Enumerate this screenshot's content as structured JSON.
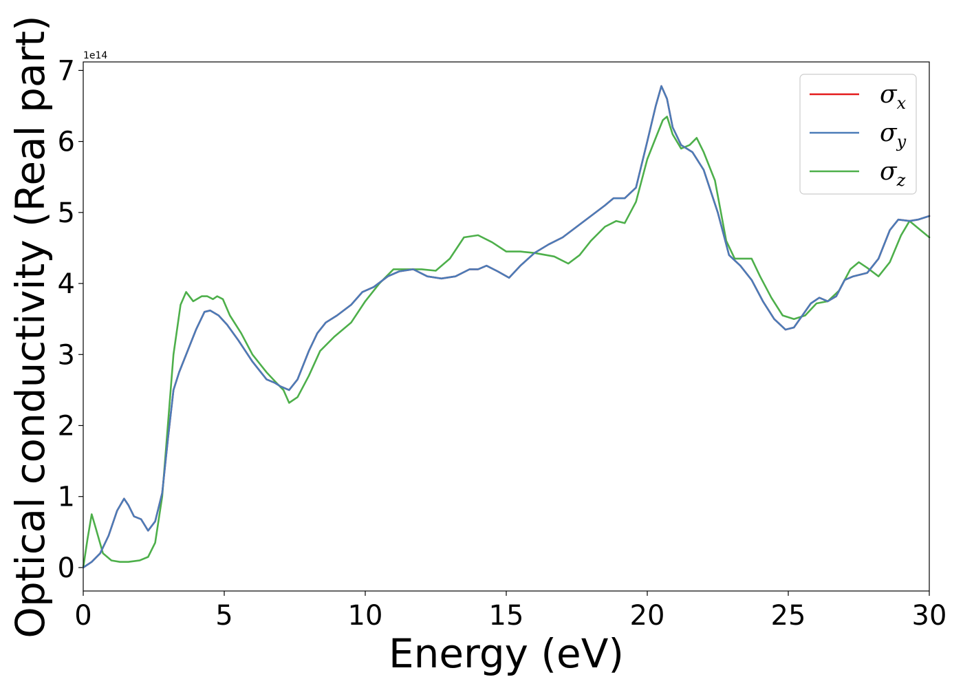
{
  "chart_data": {
    "type": "line",
    "xlabel": "Energy (eV)",
    "ylabel": "Optical conductivity (Real part)",
    "y_offset_label": "1e14",
    "xlim": [
      0,
      30
    ],
    "ylim": [
      -0.33,
      7.12
    ],
    "x_ticks": [
      0,
      5,
      10,
      15,
      20,
      25,
      30
    ],
    "y_ticks": [
      0,
      1,
      2,
      3,
      4,
      5,
      6,
      7
    ],
    "grid": false,
    "legend_position": "upper right",
    "series": [
      {
        "name": "σx",
        "name_base": "σ",
        "name_sub": "x",
        "color": "#e41a1c",
        "x": [
          0,
          0.3,
          0.6,
          0.9,
          1.2,
          1.45,
          1.6,
          1.8,
          2.05,
          2.3,
          2.55,
          2.8,
          3.0,
          3.2,
          3.4,
          3.7,
          4.0,
          4.3,
          4.5,
          4.8,
          5.1,
          5.5,
          6.0,
          6.5,
          6.8,
          7.0,
          7.3,
          7.6,
          8.0,
          8.3,
          8.6,
          9.0,
          9.5,
          9.9,
          10.3,
          10.8,
          11.2,
          11.7,
          12.2,
          12.7,
          13.2,
          13.7,
          14.0,
          14.3,
          14.7,
          15.1,
          15.5,
          16.0,
          16.5,
          17.0,
          17.5,
          18.0,
          18.5,
          18.8,
          19.2,
          19.6,
          20.0,
          20.3,
          20.5,
          20.7,
          20.9,
          21.2,
          21.6,
          22.0,
          22.5,
          22.9,
          23.3,
          23.7,
          24.1,
          24.5,
          24.9,
          25.2,
          25.5,
          25.8,
          26.1,
          26.4,
          26.7,
          27.0,
          27.3,
          27.8,
          28.2,
          28.6,
          28.9,
          29.3,
          29.6,
          30.0
        ],
        "y": [
          0.0,
          0.08,
          0.2,
          0.45,
          0.8,
          0.97,
          0.88,
          0.72,
          0.68,
          0.52,
          0.65,
          1.05,
          1.8,
          2.5,
          2.75,
          3.05,
          3.35,
          3.6,
          3.62,
          3.55,
          3.42,
          3.2,
          2.9,
          2.65,
          2.6,
          2.55,
          2.5,
          2.65,
          3.05,
          3.3,
          3.45,
          3.55,
          3.7,
          3.88,
          3.95,
          4.1,
          4.17,
          4.2,
          4.1,
          4.07,
          4.1,
          4.2,
          4.2,
          4.25,
          4.17,
          4.08,
          4.25,
          4.43,
          4.55,
          4.65,
          4.8,
          4.95,
          5.1,
          5.2,
          5.2,
          5.35,
          6.0,
          6.5,
          6.78,
          6.6,
          6.2,
          5.95,
          5.85,
          5.6,
          5.0,
          4.4,
          4.25,
          4.05,
          3.75,
          3.5,
          3.35,
          3.38,
          3.55,
          3.72,
          3.8,
          3.75,
          3.82,
          4.05,
          4.1,
          4.15,
          4.35,
          4.75,
          4.9,
          4.88,
          4.9,
          4.95
        ]
      },
      {
        "name": "σy",
        "name_base": "σ",
        "name_sub": "y",
        "color": "#4a7cb8",
        "x": [
          0,
          0.3,
          0.6,
          0.9,
          1.2,
          1.45,
          1.6,
          1.8,
          2.05,
          2.3,
          2.55,
          2.8,
          3.0,
          3.2,
          3.4,
          3.7,
          4.0,
          4.3,
          4.5,
          4.8,
          5.1,
          5.5,
          6.0,
          6.5,
          6.8,
          7.0,
          7.3,
          7.6,
          8.0,
          8.3,
          8.6,
          9.0,
          9.5,
          9.9,
          10.3,
          10.8,
          11.2,
          11.7,
          12.2,
          12.7,
          13.2,
          13.7,
          14.0,
          14.3,
          14.7,
          15.1,
          15.5,
          16.0,
          16.5,
          17.0,
          17.5,
          18.0,
          18.5,
          18.8,
          19.2,
          19.6,
          20.0,
          20.3,
          20.5,
          20.7,
          20.9,
          21.2,
          21.6,
          22.0,
          22.5,
          22.9,
          23.3,
          23.7,
          24.1,
          24.5,
          24.9,
          25.2,
          25.5,
          25.8,
          26.1,
          26.4,
          26.7,
          27.0,
          27.3,
          27.8,
          28.2,
          28.6,
          28.9,
          29.3,
          29.6,
          30.0
        ],
        "y": [
          0.0,
          0.08,
          0.2,
          0.45,
          0.8,
          0.97,
          0.88,
          0.72,
          0.68,
          0.52,
          0.65,
          1.05,
          1.8,
          2.5,
          2.75,
          3.05,
          3.35,
          3.6,
          3.62,
          3.55,
          3.42,
          3.2,
          2.9,
          2.65,
          2.6,
          2.55,
          2.5,
          2.65,
          3.05,
          3.3,
          3.45,
          3.55,
          3.7,
          3.88,
          3.95,
          4.1,
          4.17,
          4.2,
          4.1,
          4.07,
          4.1,
          4.2,
          4.2,
          4.25,
          4.17,
          4.08,
          4.25,
          4.43,
          4.55,
          4.65,
          4.8,
          4.95,
          5.1,
          5.2,
          5.2,
          5.35,
          6.0,
          6.5,
          6.78,
          6.6,
          6.2,
          5.95,
          5.85,
          5.6,
          5.0,
          4.4,
          4.25,
          4.05,
          3.75,
          3.5,
          3.35,
          3.38,
          3.55,
          3.72,
          3.8,
          3.75,
          3.82,
          4.05,
          4.1,
          4.15,
          4.35,
          4.75,
          4.9,
          4.88,
          4.9,
          4.95
        ]
      },
      {
        "name": "σz",
        "name_base": "σ",
        "name_sub": "z",
        "color": "#4daf4a",
        "x": [
          0,
          0.15,
          0.3,
          0.45,
          0.7,
          1.0,
          1.3,
          1.6,
          2.0,
          2.3,
          2.55,
          2.8,
          3.0,
          3.2,
          3.45,
          3.65,
          3.9,
          4.2,
          4.4,
          4.6,
          4.75,
          4.95,
          5.2,
          5.6,
          6.0,
          6.5,
          6.9,
          7.1,
          7.3,
          7.6,
          8.0,
          8.4,
          8.9,
          9.5,
          10.0,
          10.5,
          11.0,
          11.5,
          12.0,
          12.5,
          13.0,
          13.5,
          14.0,
          14.5,
          15.0,
          15.5,
          16.0,
          16.7,
          17.2,
          17.6,
          18.0,
          18.5,
          18.9,
          19.2,
          19.6,
          20.0,
          20.3,
          20.55,
          20.7,
          20.9,
          21.2,
          21.5,
          21.75,
          22.0,
          22.4,
          22.8,
          23.1,
          23.4,
          23.7,
          24.0,
          24.4,
          24.8,
          25.2,
          25.6,
          26.0,
          26.4,
          26.8,
          27.2,
          27.5,
          27.8,
          28.2,
          28.6,
          29.0,
          29.3,
          29.6,
          30.0
        ],
        "y": [
          0.0,
          0.4,
          0.75,
          0.55,
          0.2,
          0.1,
          0.08,
          0.08,
          0.1,
          0.15,
          0.35,
          1.0,
          2.0,
          3.0,
          3.7,
          3.88,
          3.75,
          3.82,
          3.82,
          3.78,
          3.82,
          3.78,
          3.55,
          3.3,
          3.0,
          2.75,
          2.58,
          2.5,
          2.32,
          2.4,
          2.7,
          3.05,
          3.25,
          3.45,
          3.75,
          4.0,
          4.2,
          4.2,
          4.2,
          4.18,
          4.35,
          4.65,
          4.68,
          4.58,
          4.45,
          4.45,
          4.43,
          4.38,
          4.28,
          4.4,
          4.6,
          4.8,
          4.88,
          4.85,
          5.15,
          5.75,
          6.05,
          6.3,
          6.35,
          6.1,
          5.9,
          5.95,
          6.05,
          5.85,
          5.45,
          4.6,
          4.35,
          4.35,
          4.35,
          4.1,
          3.8,
          3.55,
          3.5,
          3.55,
          3.72,
          3.75,
          3.9,
          4.2,
          4.3,
          4.22,
          4.1,
          4.3,
          4.68,
          4.88,
          4.78,
          4.65
        ]
      }
    ]
  }
}
